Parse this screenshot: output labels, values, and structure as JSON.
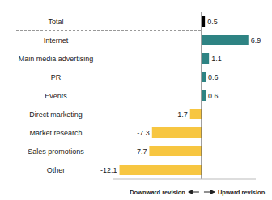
{
  "chart_data": {
    "type": "bar",
    "orientation": "horizontal",
    "categories": [
      "Total",
      "Internet",
      "Main media advertising",
      "PR",
      "Events",
      "Direct marketing",
      "Market research",
      "Sales promotions",
      "Other"
    ],
    "values": [
      0.5,
      6.9,
      1.1,
      0.6,
      0.6,
      -1.7,
      -7.3,
      -7.7,
      -12.1
    ],
    "colors": [
      "#000000",
      "#2e8383",
      "#2e8383",
      "#2e8383",
      "#2e8383",
      "#f7c641",
      "#f7c641",
      "#f7c641",
      "#f7c641"
    ],
    "xlim": [
      -13,
      8
    ],
    "data_labels": true,
    "tick_labels": "y",
    "grid": false,
    "annotations": [
      "Downward revision",
      "Upward revision"
    ]
  }
}
